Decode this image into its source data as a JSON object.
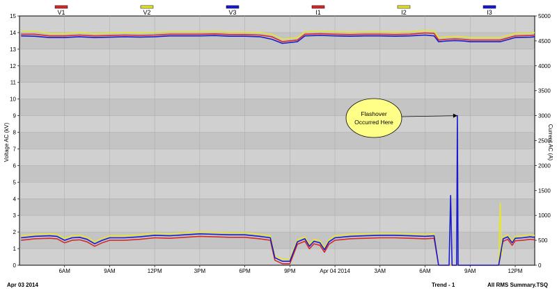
{
  "chart_data": {
    "type": "line",
    "legend": [
      {
        "name": "V1",
        "color": "#d42a2a"
      },
      {
        "name": "V2",
        "color": "#e6e62e"
      },
      {
        "name": "V3",
        "color": "#1a1ad0"
      },
      {
        "name": "I1",
        "color": "#d42a2a"
      },
      {
        "name": "I2",
        "color": "#e6e62e"
      },
      {
        "name": "I3",
        "color": "#1a1ad0"
      }
    ],
    "ylabel_left": "Voltage AC (kV)",
    "ylabel_right": "Current AC (A)",
    "ylim_left": [
      0,
      15
    ],
    "ylim_right": [
      0,
      5000
    ],
    "left_ticks": [
      "0",
      "1",
      "2",
      "3",
      "4",
      "5",
      "6",
      "7",
      "8",
      "9",
      "10",
      "11",
      "12",
      "13",
      "14",
      "15"
    ],
    "right_ticks": [
      "0",
      "500",
      "1000",
      "1500",
      "2000",
      "2500",
      "3000",
      "3500",
      "4000",
      "4500",
      "5000"
    ],
    "x_range_hours": [
      3,
      27.2
    ],
    "x_ticks": [
      {
        "hour": 6,
        "label": "6AM"
      },
      {
        "hour": 9,
        "label": "9AM"
      },
      {
        "hour": 12,
        "label": "12PM"
      },
      {
        "hour": 15,
        "label": "3PM"
      },
      {
        "hour": 18,
        "label": "6PM"
      },
      {
        "hour": 21,
        "label": "9PM"
      },
      {
        "hour": 24,
        "label": "Apr 04 2014"
      },
      {
        "hour": 27,
        "label": "3AM"
      },
      {
        "hour": 30,
        "label": "6AM"
      },
      {
        "hour": 33,
        "label": "9AM"
      },
      {
        "hour": 36,
        "label": "12PM"
      }
    ],
    "grid": true,
    "annotation": {
      "text": [
        "Flashover",
        "Occurred Here"
      ],
      "hour": 32.15,
      "value": 9.0
    },
    "footer": {
      "left": "Apr 03 2014",
      "center": "Trend - 1",
      "right": "All RMS Summary.TSQ"
    },
    "series": [
      {
        "name": "V1",
        "axis": "left",
        "color": "#d42a2a",
        "points": [
          [
            3.1,
            13.9
          ],
          [
            4,
            13.9
          ],
          [
            5,
            13.8
          ],
          [
            6,
            13.8
          ],
          [
            7,
            13.85
          ],
          [
            8,
            13.8
          ],
          [
            9,
            13.82
          ],
          [
            10,
            13.85
          ],
          [
            11,
            13.83
          ],
          [
            12,
            13.85
          ],
          [
            13,
            13.9
          ],
          [
            14,
            13.9
          ],
          [
            15,
            13.9
          ],
          [
            16,
            13.92
          ],
          [
            17,
            13.88
          ],
          [
            18,
            13.88
          ],
          [
            19,
            13.85
          ],
          [
            19.8,
            13.75
          ],
          [
            20.5,
            13.45
          ],
          [
            21.5,
            13.55
          ],
          [
            22,
            13.9
          ],
          [
            23,
            13.93
          ],
          [
            24,
            13.9
          ],
          [
            25,
            13.88
          ],
          [
            26,
            13.9
          ],
          [
            27,
            13.9
          ],
          [
            28,
            13.88
          ],
          [
            29,
            13.9
          ],
          [
            30,
            13.98
          ],
          [
            30.6,
            13.95
          ],
          [
            30.9,
            13.55
          ],
          [
            31.5,
            13.6
          ],
          [
            32,
            13.62
          ],
          [
            32.5,
            13.6
          ],
          [
            33,
            13.55
          ],
          [
            34,
            13.55
          ],
          [
            35,
            13.55
          ],
          [
            36,
            13.8
          ],
          [
            37,
            13.82
          ],
          [
            37.3,
            13.85
          ]
        ]
      },
      {
        "name": "V2",
        "axis": "left",
        "color": "#e6e62e",
        "points": [
          [
            3.1,
            14.1
          ],
          [
            4,
            14.08
          ],
          [
            5,
            13.95
          ],
          [
            6,
            13.95
          ],
          [
            7,
            14.0
          ],
          [
            8,
            13.95
          ],
          [
            9,
            13.98
          ],
          [
            10,
            14.0
          ],
          [
            11,
            13.98
          ],
          [
            12,
            14.02
          ],
          [
            13,
            14.05
          ],
          [
            14,
            14.05
          ],
          [
            15,
            14.05
          ],
          [
            16,
            14.07
          ],
          [
            17,
            14.03
          ],
          [
            18,
            14.03
          ],
          [
            19,
            14.0
          ],
          [
            19.8,
            13.9
          ],
          [
            20.5,
            13.6
          ],
          [
            21.5,
            13.7
          ],
          [
            22,
            14.05
          ],
          [
            23,
            14.08
          ],
          [
            24,
            14.05
          ],
          [
            25,
            14.03
          ],
          [
            26,
            14.05
          ],
          [
            27,
            14.05
          ],
          [
            28,
            14.03
          ],
          [
            29,
            14.05
          ],
          [
            30,
            14.13
          ],
          [
            30.6,
            14.1
          ],
          [
            30.9,
            13.7
          ],
          [
            31.5,
            13.75
          ],
          [
            32,
            13.77
          ],
          [
            32.5,
            13.75
          ],
          [
            33,
            13.7
          ],
          [
            34,
            13.7
          ],
          [
            35,
            13.7
          ],
          [
            36,
            13.95
          ],
          [
            37,
            13.97
          ],
          [
            37.3,
            14.0
          ]
        ]
      },
      {
        "name": "V3",
        "axis": "left",
        "color": "#1a1ad0",
        "points": [
          [
            3.1,
            13.8
          ],
          [
            4,
            13.78
          ],
          [
            5,
            13.7
          ],
          [
            6,
            13.7
          ],
          [
            7,
            13.75
          ],
          [
            8,
            13.7
          ],
          [
            9,
            13.72
          ],
          [
            10,
            13.75
          ],
          [
            11,
            13.73
          ],
          [
            12,
            13.75
          ],
          [
            13,
            13.8
          ],
          [
            14,
            13.8
          ],
          [
            15,
            13.8
          ],
          [
            16,
            13.82
          ],
          [
            17,
            13.78
          ],
          [
            18,
            13.78
          ],
          [
            19,
            13.75
          ],
          [
            19.8,
            13.6
          ],
          [
            20.5,
            13.35
          ],
          [
            21.5,
            13.45
          ],
          [
            22,
            13.8
          ],
          [
            23,
            13.83
          ],
          [
            24,
            13.8
          ],
          [
            25,
            13.78
          ],
          [
            26,
            13.8
          ],
          [
            27,
            13.8
          ],
          [
            28,
            13.78
          ],
          [
            29,
            13.8
          ],
          [
            30,
            13.85
          ],
          [
            30.6,
            13.8
          ],
          [
            30.9,
            13.45
          ],
          [
            31.5,
            13.5
          ],
          [
            32,
            13.52
          ],
          [
            32.5,
            13.5
          ],
          [
            33,
            13.45
          ],
          [
            34,
            13.45
          ],
          [
            35,
            13.45
          ],
          [
            36,
            13.7
          ],
          [
            37,
            13.72
          ],
          [
            37.3,
            13.75
          ]
        ]
      },
      {
        "name": "I1",
        "axis": "right",
        "color": "#d42a2a",
        "points": [
          [
            3.1,
            500
          ],
          [
            4,
            530
          ],
          [
            5,
            540
          ],
          [
            5.5,
            530
          ],
          [
            6,
            450
          ],
          [
            6.5,
            500
          ],
          [
            7,
            510
          ],
          [
            7.5,
            470
          ],
          [
            8,
            380
          ],
          [
            8.5,
            450
          ],
          [
            9,
            500
          ],
          [
            10,
            500
          ],
          [
            11,
            520
          ],
          [
            12,
            550
          ],
          [
            13,
            540
          ],
          [
            14,
            560
          ],
          [
            15,
            580
          ],
          [
            16,
            570
          ],
          [
            17,
            560
          ],
          [
            18,
            560
          ],
          [
            19,
            530
          ],
          [
            19.7,
            500
          ],
          [
            20,
            100
          ],
          [
            20.5,
            30
          ],
          [
            21,
            30
          ],
          [
            21.5,
            420
          ],
          [
            22,
            480
          ],
          [
            22.3,
            330
          ],
          [
            22.6,
            430
          ],
          [
            23,
            400
          ],
          [
            23.3,
            260
          ],
          [
            23.6,
            420
          ],
          [
            24,
            500
          ],
          [
            25,
            530
          ],
          [
            26,
            540
          ],
          [
            27,
            550
          ],
          [
            28,
            550
          ],
          [
            29,
            540
          ],
          [
            30,
            530
          ],
          [
            30.6,
            540
          ],
          [
            30.9,
            0
          ],
          [
            32,
            0
          ],
          [
            33,
            0
          ],
          [
            34,
            0
          ],
          [
            34.9,
            0
          ],
          [
            35.2,
            480
          ],
          [
            35.5,
            520
          ],
          [
            35.8,
            400
          ],
          [
            36,
            490
          ],
          [
            36.5,
            500
          ],
          [
            37,
            520
          ],
          [
            37.3,
            510
          ]
        ]
      },
      {
        "name": "I2",
        "axis": "right",
        "color": "#e6e62e",
        "points": [
          [
            3.1,
            590
          ],
          [
            4,
            620
          ],
          [
            5,
            630
          ],
          [
            5.5,
            620
          ],
          [
            6,
            540
          ],
          [
            6.5,
            590
          ],
          [
            7,
            600
          ],
          [
            7.5,
            560
          ],
          [
            8,
            470
          ],
          [
            8.5,
            540
          ],
          [
            9,
            590
          ],
          [
            10,
            590
          ],
          [
            11,
            610
          ],
          [
            12,
            640
          ],
          [
            13,
            630
          ],
          [
            14,
            650
          ],
          [
            15,
            670
          ],
          [
            16,
            660
          ],
          [
            17,
            650
          ],
          [
            18,
            650
          ],
          [
            19,
            620
          ],
          [
            19.7,
            590
          ],
          [
            20,
            190
          ],
          [
            20.5,
            120
          ],
          [
            21,
            120
          ],
          [
            21.5,
            510
          ],
          [
            22,
            570
          ],
          [
            22.3,
            420
          ],
          [
            22.6,
            520
          ],
          [
            23,
            490
          ],
          [
            23.3,
            350
          ],
          [
            23.6,
            510
          ],
          [
            24,
            590
          ],
          [
            25,
            620
          ],
          [
            26,
            630
          ],
          [
            27,
            640
          ],
          [
            28,
            640
          ],
          [
            29,
            630
          ],
          [
            30,
            620
          ],
          [
            30.6,
            630
          ],
          [
            30.9,
            0
          ],
          [
            32,
            0
          ],
          [
            33,
            0
          ],
          [
            34,
            0
          ],
          [
            34.9,
            0
          ],
          [
            35.0,
            1250
          ],
          [
            35.1,
            200
          ],
          [
            35.2,
            570
          ],
          [
            35.5,
            610
          ],
          [
            35.8,
            490
          ],
          [
            36,
            580
          ],
          [
            36.5,
            590
          ],
          [
            37,
            610
          ],
          [
            37.3,
            600
          ]
        ]
      },
      {
        "name": "I3",
        "axis": "right",
        "color": "#1a1ad0",
        "points": [
          [
            3.1,
            550
          ],
          [
            4,
            580
          ],
          [
            5,
            590
          ],
          [
            5.5,
            580
          ],
          [
            6,
            500
          ],
          [
            6.5,
            550
          ],
          [
            7,
            560
          ],
          [
            7.5,
            520
          ],
          [
            8,
            430
          ],
          [
            8.5,
            500
          ],
          [
            9,
            550
          ],
          [
            10,
            550
          ],
          [
            11,
            570
          ],
          [
            12,
            600
          ],
          [
            13,
            590
          ],
          [
            14,
            610
          ],
          [
            15,
            630
          ],
          [
            16,
            620
          ],
          [
            17,
            610
          ],
          [
            18,
            610
          ],
          [
            19,
            580
          ],
          [
            19.7,
            550
          ],
          [
            20,
            150
          ],
          [
            20.5,
            80
          ],
          [
            21,
            80
          ],
          [
            21.5,
            470
          ],
          [
            22,
            530
          ],
          [
            22.3,
            380
          ],
          [
            22.6,
            480
          ],
          [
            23,
            450
          ],
          [
            23.3,
            310
          ],
          [
            23.6,
            470
          ],
          [
            24,
            550
          ],
          [
            25,
            580
          ],
          [
            26,
            590
          ],
          [
            27,
            600
          ],
          [
            28,
            600
          ],
          [
            29,
            590
          ],
          [
            30,
            580
          ],
          [
            30.6,
            590
          ],
          [
            30.9,
            0
          ],
          [
            31.6,
            0
          ],
          [
            31.7,
            1400
          ],
          [
            31.8,
            0
          ],
          [
            32.1,
            0
          ],
          [
            32.15,
            3000
          ],
          [
            32.2,
            0
          ],
          [
            33,
            0
          ],
          [
            34,
            0
          ],
          [
            34.9,
            0
          ],
          [
            35.2,
            530
          ],
          [
            35.5,
            570
          ],
          [
            35.8,
            450
          ],
          [
            36,
            540
          ],
          [
            36.5,
            550
          ],
          [
            37,
            570
          ],
          [
            37.3,
            560
          ]
        ]
      }
    ]
  }
}
